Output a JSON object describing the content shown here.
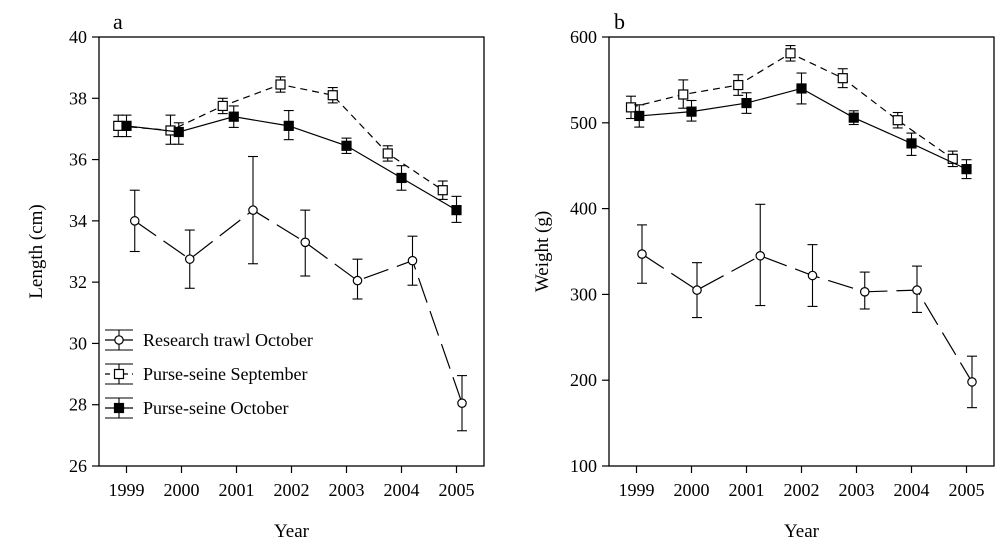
{
  "chart_data": [
    {
      "type": "line",
      "panel_label": "a",
      "xlabel": "Year",
      "ylabel": "Length (cm)",
      "ylim": [
        26,
        40
      ],
      "y_ticks": [
        26,
        28,
        30,
        32,
        34,
        36,
        38,
        40
      ],
      "categories": [
        "1999",
        "2000",
        "2001",
        "2002",
        "2003",
        "2004",
        "2005"
      ],
      "grid": false,
      "legend_position": "bottom-left",
      "series": [
        {
          "name": "Research trawl October",
          "marker": "open-circle",
          "line": "long-dash",
          "x": [
            1999.15,
            2000.15,
            2001.3,
            2002.25,
            2003.2,
            2004.2,
            2005.1
          ],
          "values": [
            34.0,
            32.75,
            34.35,
            33.3,
            32.05,
            32.7,
            28.05
          ],
          "error_low": [
            33.0,
            31.8,
            32.6,
            32.2,
            31.45,
            31.9,
            27.15
          ],
          "error_high": [
            35.0,
            33.7,
            36.1,
            34.35,
            32.75,
            33.5,
            28.95
          ]
        },
        {
          "name": "Purse-seine September",
          "marker": "open-square",
          "line": "short-dash",
          "x": [
            1998.85,
            1999.8,
            2000.75,
            2001.8,
            2002.75,
            2003.75,
            2004.75
          ],
          "values": [
            37.1,
            36.95,
            37.75,
            38.45,
            38.1,
            36.2,
            35.0
          ],
          "error_low": [
            36.75,
            36.5,
            37.5,
            38.2,
            37.85,
            35.95,
            34.7
          ],
          "error_high": [
            37.45,
            37.45,
            38.0,
            38.7,
            38.35,
            36.45,
            35.3
          ]
        },
        {
          "name": "Purse-seine October",
          "marker": "filled-square",
          "line": "solid",
          "x": [
            1999.0,
            1999.95,
            2000.95,
            2001.95,
            2003.0,
            2004.0,
            2005.0
          ],
          "values": [
            37.1,
            36.9,
            37.4,
            37.1,
            36.45,
            35.4,
            34.35
          ],
          "error_low": [
            36.75,
            36.5,
            37.05,
            36.65,
            36.2,
            35.0,
            33.95
          ],
          "error_high": [
            37.45,
            37.2,
            37.75,
            37.6,
            36.7,
            35.8,
            34.8
          ]
        }
      ]
    },
    {
      "type": "line",
      "panel_label": "b",
      "xlabel": "Year",
      "ylabel": "Weight (g)",
      "ylim": [
        100,
        600
      ],
      "y_ticks": [
        100,
        200,
        300,
        400,
        500,
        600
      ],
      "categories": [
        "1999",
        "2000",
        "2001",
        "2002",
        "2003",
        "2004",
        "2005"
      ],
      "grid": false,
      "series": [
        {
          "name": "Research trawl October",
          "marker": "open-circle",
          "line": "long-dash",
          "x": [
            1999.1,
            2000.1,
            2001.25,
            2002.2,
            2003.15,
            2004.1,
            2005.1
          ],
          "values": [
            347,
            305,
            345,
            322,
            303,
            305,
            198
          ],
          "error_low": [
            313,
            273,
            287,
            286,
            283,
            279,
            168
          ],
          "error_high": [
            381,
            337,
            405,
            358,
            326,
            333,
            228
          ]
        },
        {
          "name": "Purse-seine September",
          "marker": "open-square",
          "line": "short-dash",
          "x": [
            1998.9,
            1999.85,
            2000.85,
            2001.8,
            2002.75,
            2003.75,
            2004.75
          ],
          "values": [
            518,
            533,
            544,
            581,
            552,
            503,
            458
          ],
          "error_low": [
            505,
            517,
            532,
            572,
            541,
            494,
            449
          ],
          "error_high": [
            531,
            550,
            556,
            590,
            563,
            512,
            467
          ]
        },
        {
          "name": "Purse-seine October",
          "marker": "filled-square",
          "line": "solid",
          "x": [
            1999.05,
            2000.0,
            2001.0,
            2002.0,
            2002.95,
            2004.0,
            2005.0
          ],
          "values": [
            508,
            513,
            523,
            540,
            506,
            476,
            446
          ],
          "error_low": [
            495,
            502,
            511,
            522,
            498,
            462,
            435
          ],
          "error_high": [
            521,
            526,
            535,
            558,
            514,
            488,
            457
          ]
        }
      ]
    }
  ]
}
